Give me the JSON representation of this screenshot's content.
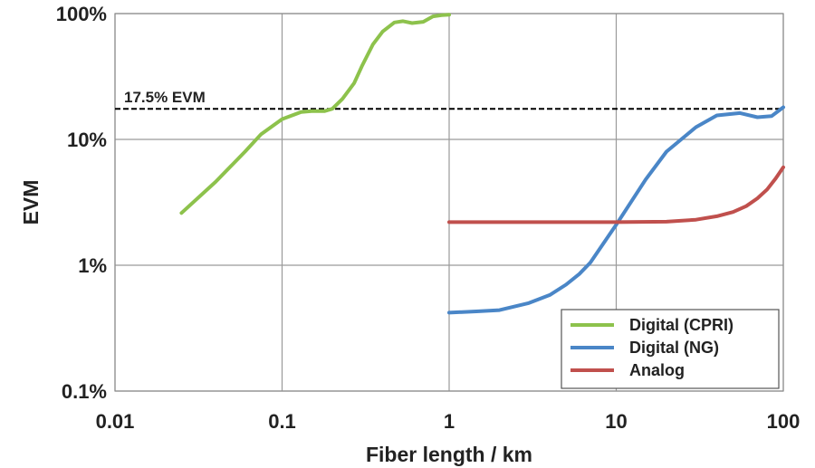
{
  "chart_data": {
    "type": "line",
    "title": "",
    "xlabel": "Fiber length / km",
    "ylabel": "EVM",
    "x_scale": "log",
    "y_scale": "log",
    "xlim": [
      0.01,
      100
    ],
    "ylim": [
      0.1,
      100
    ],
    "grid": true,
    "x_ticks": [
      "0.01",
      "0.1",
      "1",
      "10",
      "100"
    ],
    "x_tick_values": [
      0.01,
      0.1,
      1,
      10,
      100
    ],
    "y_ticks": [
      "0.1%",
      "1%",
      "10%",
      "100%"
    ],
    "y_tick_values": [
      0.1,
      1,
      10,
      100
    ],
    "legend_position": "bottom-right",
    "annotation": {
      "text": "17.5% EVM",
      "y": 17.5,
      "style": "dashed",
      "color": "#000000"
    },
    "series": [
      {
        "name": "Digital (CPRI)",
        "color": "#8dc24c",
        "x": [
          0.025,
          0.04,
          0.06,
          0.075,
          0.1,
          0.13,
          0.15,
          0.18,
          0.2,
          0.23,
          0.27,
          0.3,
          0.35,
          0.4,
          0.47,
          0.53,
          0.6,
          0.7,
          0.8,
          0.9,
          1.0
        ],
        "y": [
          2.6,
          4.6,
          8.0,
          11.0,
          14.5,
          16.5,
          16.8,
          16.8,
          17.5,
          21.0,
          28.0,
          38.0,
          57.0,
          72.0,
          85.0,
          87.0,
          84.0,
          86.0,
          95.0,
          97.0,
          98.0
        ]
      },
      {
        "name": "Digital (NG)",
        "color": "#4a86c7",
        "x": [
          1.0,
          1.5,
          2.0,
          3.0,
          4.0,
          5.0,
          6.0,
          7.0,
          10.0,
          15.0,
          20.0,
          30.0,
          40.0,
          55.0,
          70.0,
          85.0,
          100.0
        ],
        "y": [
          0.42,
          0.43,
          0.44,
          0.5,
          0.58,
          0.7,
          0.85,
          1.05,
          2.1,
          4.8,
          8.0,
          12.5,
          15.5,
          16.2,
          15.0,
          15.3,
          18.0
        ]
      },
      {
        "name": "Analog",
        "color": "#c0504d",
        "x": [
          1.0,
          5.0,
          10.0,
          20.0,
          30.0,
          40.0,
          50.0,
          60.0,
          70.0,
          80.0,
          90.0,
          100.0
        ],
        "y": [
          2.2,
          2.2,
          2.2,
          2.22,
          2.3,
          2.45,
          2.65,
          2.95,
          3.4,
          4.0,
          4.9,
          6.0
        ]
      }
    ]
  }
}
